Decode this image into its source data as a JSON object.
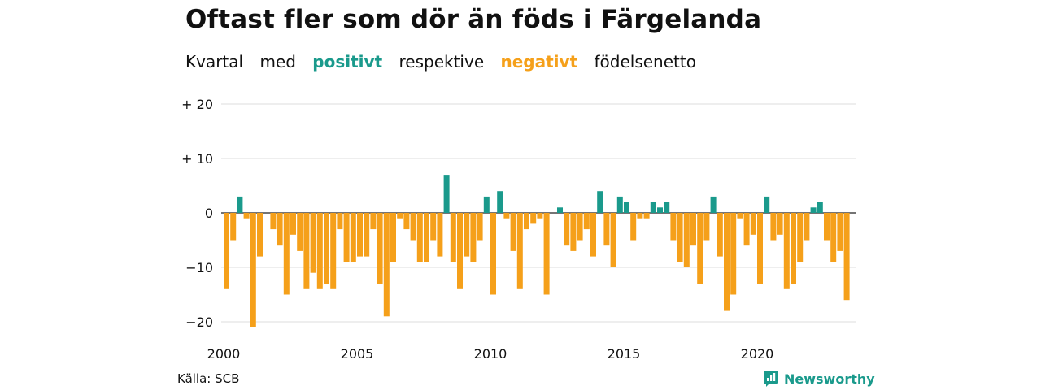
{
  "header": {
    "title": "Oftast fler som dör än föds i Färgelanda",
    "subtitle": {
      "w1": "Kvartal",
      "w2": "med",
      "positive": "positivt",
      "w3": "respektive",
      "negative": "negativt",
      "w4": "födelsenetto"
    }
  },
  "footer": {
    "source": "Källa: SCB",
    "brand": "Newsworthy"
  },
  "colors": {
    "positive": "#1a9a8c",
    "negative": "#f5a01a",
    "grid": "#dddddd"
  },
  "chart_data": {
    "type": "bar",
    "title": "Oftast fler som dör än föds i Färgelanda",
    "ylim": [
      -22,
      22
    ],
    "yticks": [
      {
        "value": 20,
        "label": "+ 20"
      },
      {
        "value": 10,
        "label": "+ 10"
      },
      {
        "value": 0,
        "label": "0"
      },
      {
        "value": -10,
        "label": "−10"
      },
      {
        "value": -20,
        "label": "−20"
      }
    ],
    "xticks": [
      "2000",
      "2005",
      "2010",
      "2015",
      "2020"
    ],
    "start": "2000 Q1",
    "frequency": "quarterly",
    "values": [
      -14,
      -5,
      3,
      -1,
      -21,
      -8,
      0,
      -3,
      -6,
      -15,
      -4,
      -7,
      -14,
      -11,
      -14,
      -13,
      -14,
      -3,
      -9,
      -9,
      -8,
      -8,
      -3,
      -13,
      -19,
      -9,
      -1,
      -3,
      -5,
      -9,
      -9,
      -5,
      -8,
      7,
      -9,
      -14,
      -8,
      -9,
      -5,
      3,
      -15,
      4,
      -1,
      -7,
      -14,
      -3,
      -2,
      -1,
      -15,
      0,
      1,
      -6,
      -7,
      -5,
      -3,
      -8,
      4,
      -6,
      -10,
      3,
      2,
      -5,
      -1,
      -1,
      2,
      1,
      2,
      -5,
      -9,
      -10,
      -6,
      -13,
      -5,
      3,
      -8,
      -18,
      -15,
      -1,
      -6,
      -4,
      -13,
      3,
      -5,
      -4,
      -14,
      -13,
      -9,
      -5,
      1,
      2,
      -5,
      -9,
      -7,
      -16
    ]
  }
}
